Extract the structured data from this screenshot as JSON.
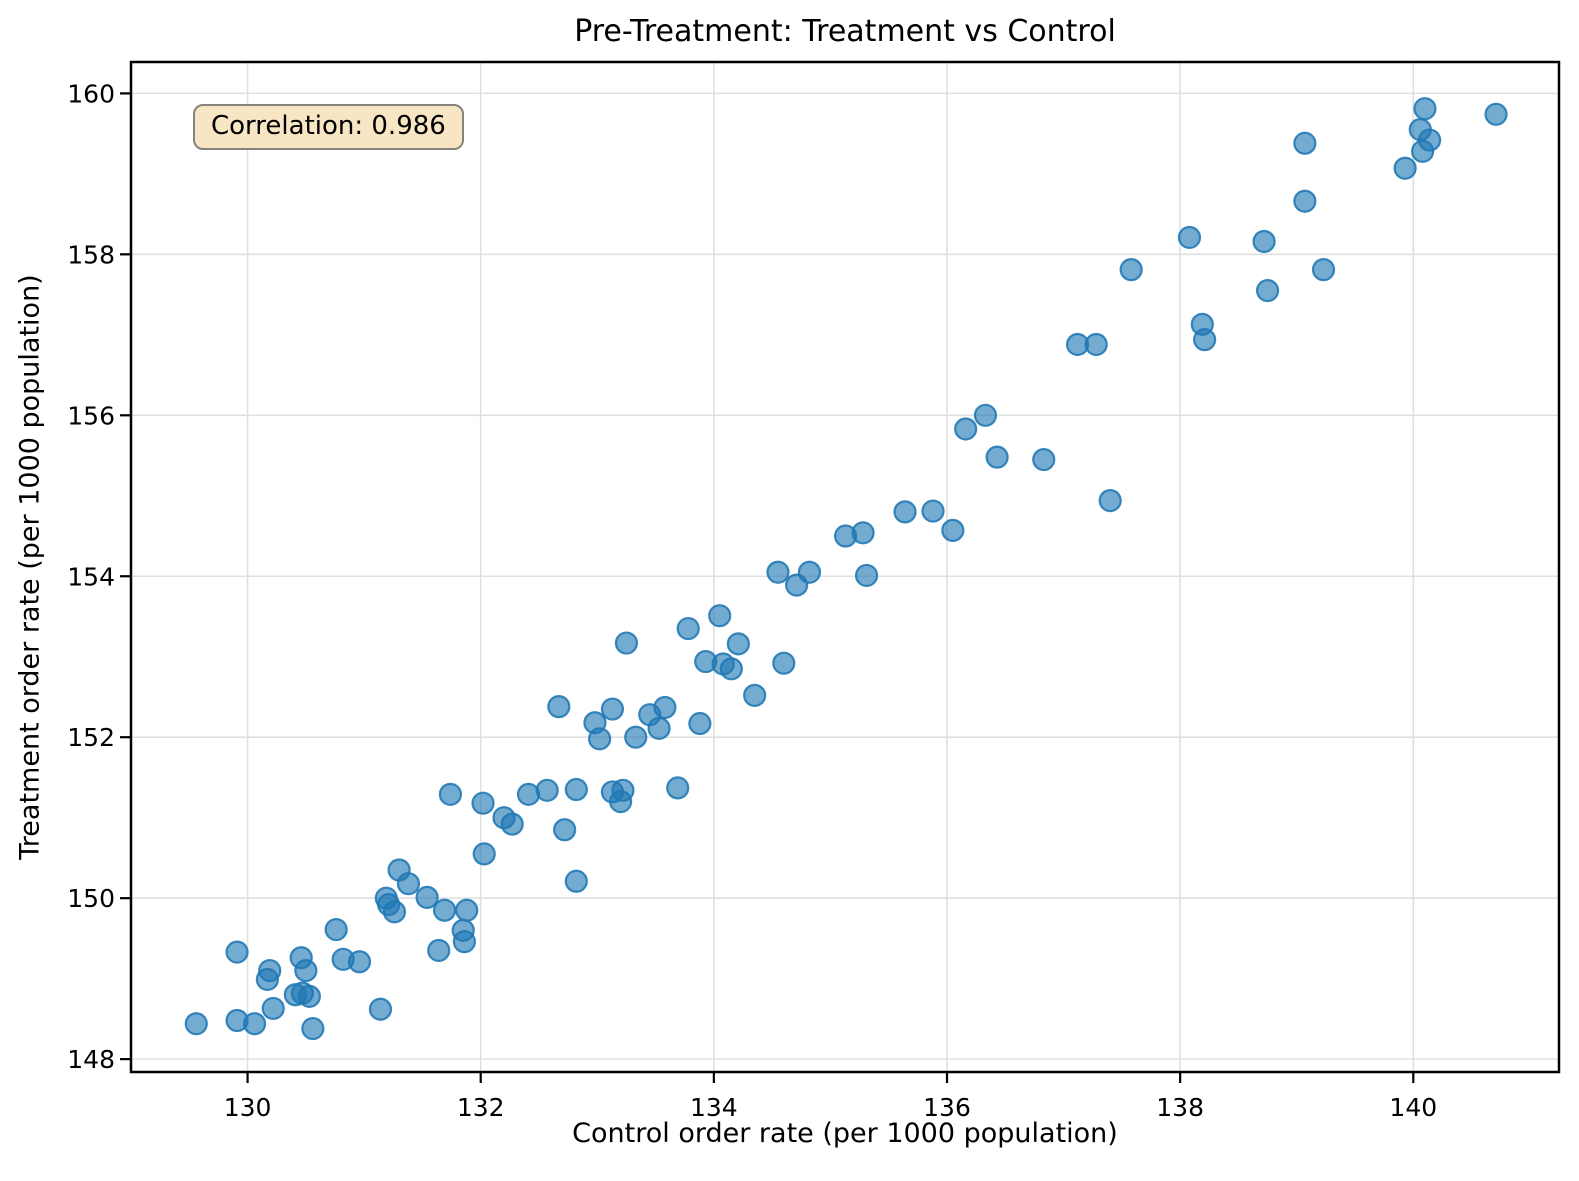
{
  "figure": {
    "background": "#ffffff"
  },
  "chart_data": {
    "type": "scatter",
    "title": "Pre-Treatment: Treatment vs Control",
    "xlabel": "Control order rate (per 1000 population)",
    "ylabel": "Treatment order rate (per 1000 population)",
    "annotation": {
      "text": "Correlation: 0.986",
      "box_color": "#f7e5c3",
      "border_color": "#84847c"
    },
    "xlim": [
      129.0,
      141.25
    ],
    "ylim": [
      147.84,
      160.39
    ],
    "xticks": [
      130,
      132,
      134,
      136,
      138,
      140
    ],
    "yticks": [
      148,
      150,
      152,
      154,
      156,
      158,
      160
    ],
    "grid": true,
    "grid_color": "#e0e0e0",
    "marker": {
      "color": "#1f77b4",
      "fill_opacity": 0.62,
      "edge_opacity": 0.88,
      "radius": 10.5,
      "edge_width": 2.2
    },
    "points": [
      [
        129.56,
        148.44
      ],
      [
        129.91,
        149.33
      ],
      [
        129.91,
        148.48
      ],
      [
        130.06,
        148.44
      ],
      [
        130.19,
        149.1
      ],
      [
        130.17,
        148.99
      ],
      [
        130.22,
        148.63
      ],
      [
        130.46,
        149.26
      ],
      [
        130.5,
        149.1
      ],
      [
        130.41,
        148.8
      ],
      [
        130.47,
        148.82
      ],
      [
        130.53,
        148.78
      ],
      [
        130.56,
        148.38
      ],
      [
        130.76,
        149.61
      ],
      [
        130.82,
        149.24
      ],
      [
        130.96,
        149.21
      ],
      [
        131.14,
        148.62
      ],
      [
        131.3,
        150.35
      ],
      [
        131.38,
        150.18
      ],
      [
        131.19,
        150.0
      ],
      [
        131.21,
        149.92
      ],
      [
        131.26,
        149.83
      ],
      [
        131.54,
        150.01
      ],
      [
        131.69,
        149.85
      ],
      [
        131.88,
        149.85
      ],
      [
        131.85,
        149.6
      ],
      [
        131.86,
        149.46
      ],
      [
        131.64,
        149.35
      ],
      [
        131.74,
        151.29
      ],
      [
        132.02,
        151.18
      ],
      [
        132.2,
        151.0
      ],
      [
        132.27,
        150.92
      ],
      [
        132.03,
        150.55
      ],
      [
        132.41,
        151.29
      ],
      [
        132.57,
        151.34
      ],
      [
        132.72,
        150.85
      ],
      [
        132.82,
        150.21
      ],
      [
        132.82,
        151.35
      ],
      [
        133.13,
        151.32
      ],
      [
        133.22,
        151.34
      ],
      [
        133.2,
        151.2
      ],
      [
        133.69,
        151.37
      ],
      [
        132.67,
        152.38
      ],
      [
        132.98,
        152.18
      ],
      [
        133.02,
        151.98
      ],
      [
        133.13,
        152.35
      ],
      [
        133.33,
        152.0
      ],
      [
        133.45,
        152.28
      ],
      [
        133.53,
        152.11
      ],
      [
        133.58,
        152.37
      ],
      [
        133.88,
        152.17
      ],
      [
        133.25,
        153.17
      ],
      [
        133.78,
        153.35
      ],
      [
        133.93,
        152.94
      ],
      [
        134.08,
        152.91
      ],
      [
        134.15,
        152.85
      ],
      [
        134.21,
        153.16
      ],
      [
        134.35,
        152.52
      ],
      [
        134.6,
        152.92
      ],
      [
        134.05,
        153.51
      ],
      [
        134.55,
        154.05
      ],
      [
        134.71,
        153.89
      ],
      [
        134.82,
        154.05
      ],
      [
        135.13,
        154.5
      ],
      [
        135.28,
        154.54
      ],
      [
        135.31,
        154.01
      ],
      [
        135.64,
        154.8
      ],
      [
        135.88,
        154.81
      ],
      [
        136.05,
        154.57
      ],
      [
        136.16,
        155.83
      ],
      [
        136.33,
        156.0
      ],
      [
        136.43,
        155.48
      ],
      [
        136.83,
        155.45
      ],
      [
        137.4,
        154.94
      ],
      [
        137.12,
        156.88
      ],
      [
        137.28,
        156.88
      ],
      [
        137.58,
        157.81
      ],
      [
        138.08,
        158.21
      ],
      [
        138.19,
        157.13
      ],
      [
        138.21,
        156.94
      ],
      [
        138.72,
        158.16
      ],
      [
        138.75,
        157.55
      ],
      [
        139.07,
        159.38
      ],
      [
        139.07,
        158.66
      ],
      [
        139.23,
        157.81
      ],
      [
        139.93,
        159.07
      ],
      [
        140.06,
        159.55
      ],
      [
        140.08,
        159.28
      ],
      [
        140.1,
        159.81
      ],
      [
        140.14,
        159.42
      ],
      [
        140.71,
        159.74
      ]
    ],
    "style": {
      "spine_color": "#000000",
      "spine_width": 2.5,
      "tick_length": 11,
      "tick_width": 2.2,
      "tick_font_size": 25
    }
  }
}
